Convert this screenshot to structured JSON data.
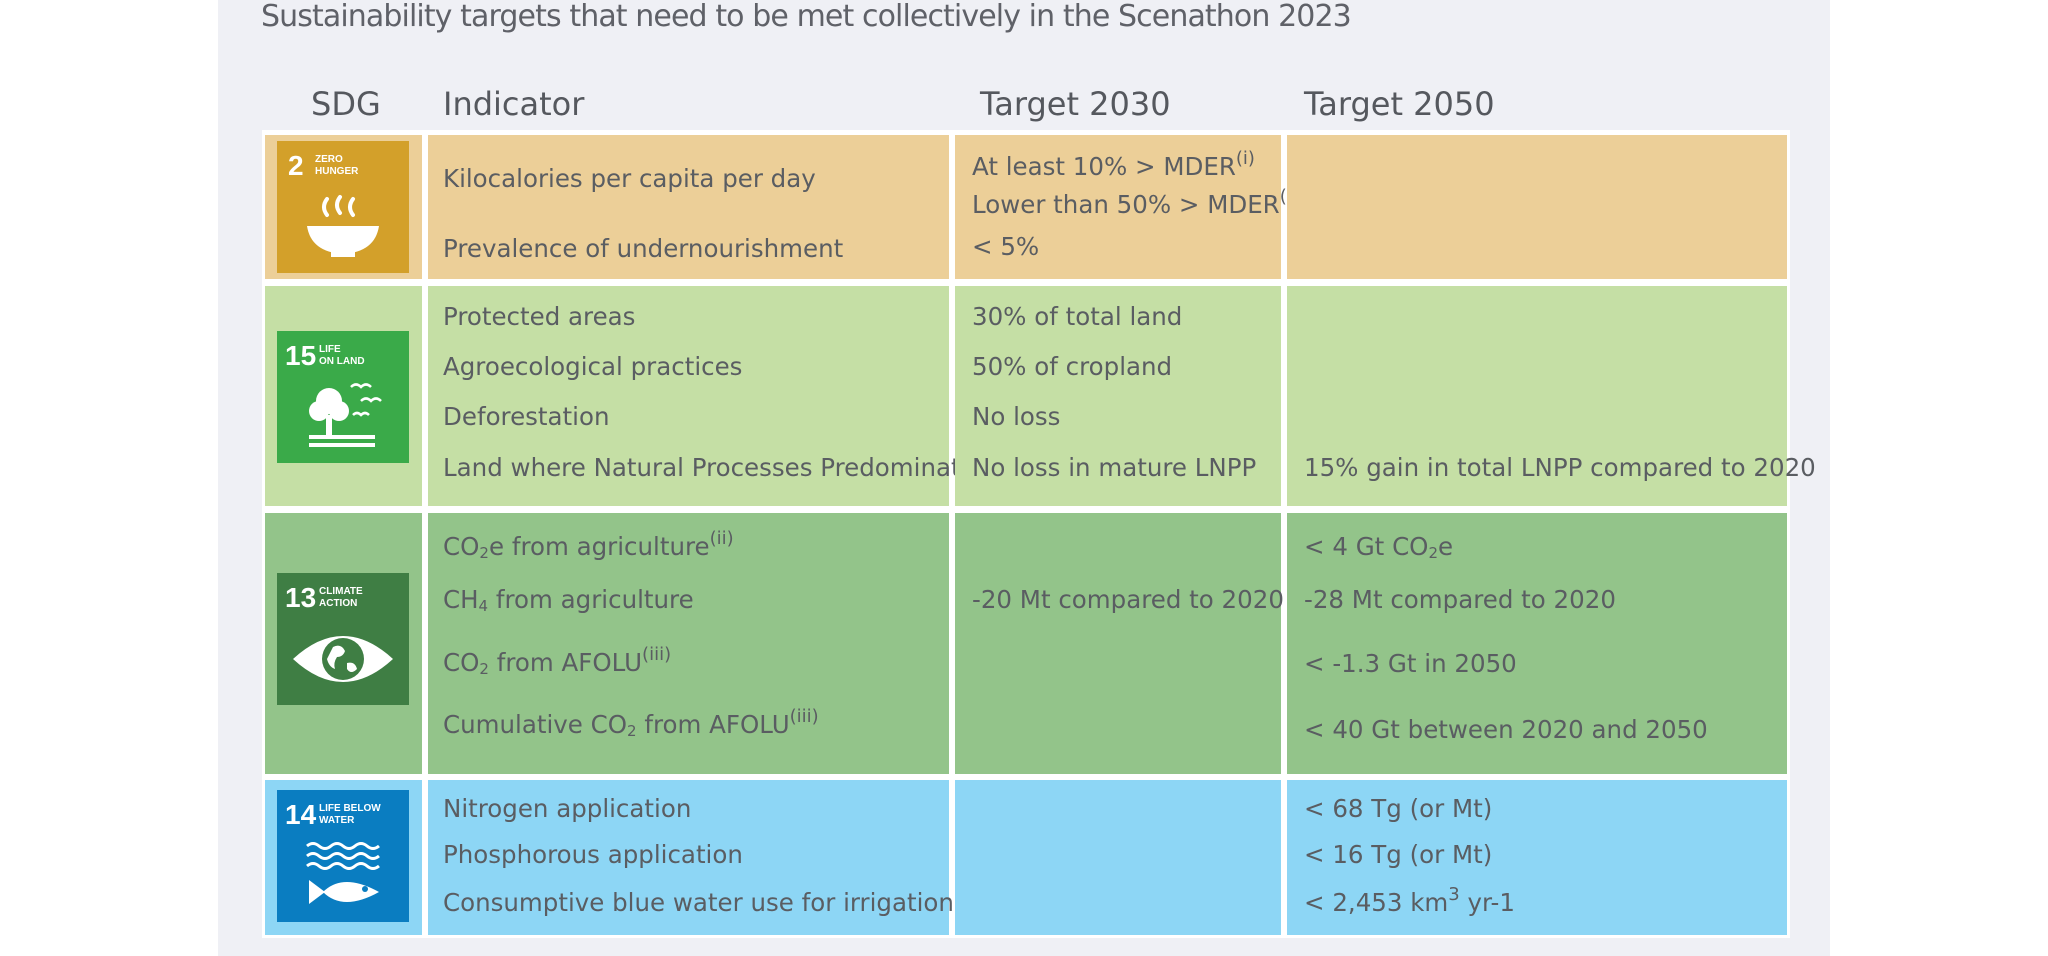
{
  "title": "Sustainability targets that need to be met collectively in the Scenathon 2023",
  "headers": {
    "sdg": "SDG",
    "indicator": "Indicator",
    "target_2030": "Target 2030",
    "target_2050": "Target 2050"
  },
  "colors": {
    "row_zero_hunger": "#eccf98",
    "row_life_on_land": "#c5dfa5",
    "row_climate_action": "#93c48a",
    "row_life_below_water": "#8dd6f5",
    "sdg2": "#d3a02a",
    "sdg15": "#3aaa49",
    "sdg13": "#3f7e44",
    "sdg14": "#0a7dc1"
  },
  "rows": [
    {
      "sdg": {
        "number": "2",
        "line1": "ZERO",
        "line2": "HUNGER",
        "icon": "bowl-icon"
      },
      "indicators": [
        "Kilocalories per capita per day",
        "Prevalence of undernourishment"
      ],
      "t2030": [
        "At least 10% > MDER",
        "Lower than 50% > MDER",
        "< 5%"
      ],
      "t2030_sup": "(i)",
      "t2050": []
    },
    {
      "sdg": {
        "number": "15",
        "line1": "LIFE",
        "line2": "ON LAND",
        "icon": "tree-birds-icon"
      },
      "indicators": [
        "Protected areas",
        "Agroecological practices",
        "Deforestation",
        "Land where Natural Processes Predominate"
      ],
      "t2030": [
        "30% of total land",
        "50% of cropland",
        "No loss",
        "No loss in mature LNPP"
      ],
      "t2050": [
        "15% gain in total LNPP compared to 2020"
      ]
    },
    {
      "sdg": {
        "number": "13",
        "line1": "CLIMATE",
        "line2": "ACTION",
        "icon": "earth-eye-icon"
      },
      "indicators": [
        {
          "pre": "CO",
          "sub": "2",
          "post": "e from agriculture",
          "sup": "(ii)"
        },
        {
          "pre": "CH",
          "sub": "4",
          "post": " from agriculture",
          "sup": ""
        },
        {
          "pre": "CO",
          "sub": "2",
          "post": " from AFOLU",
          "sup": "(iii)"
        },
        {
          "pre": "Cumulative CO",
          "sub": "2",
          "post": " from AFOLU",
          "sup": "(iii)"
        }
      ],
      "t2030": [
        "-20 Mt compared to 2020"
      ],
      "t2050": [
        {
          "pre": "< 4 Gt CO",
          "sub": "2",
          "post": "e"
        },
        "-28 Mt compared to 2020",
        "< -1.3 Gt in 2050",
        "< 40 Gt between 2020 and 2050"
      ]
    },
    {
      "sdg": {
        "number": "14",
        "line1": "LIFE BELOW",
        "line2": "WATER",
        "icon": "waves-fish-icon"
      },
      "indicators": [
        "Nitrogen application",
        "Phosphorous application",
        "Consumptive blue water use for irrigation"
      ],
      "t2030": [],
      "t2050": [
        "< 68 Tg (or Mt)",
        "< 16 Tg (or Mt)",
        {
          "pre": "< 2,453 km",
          "sup": "3",
          "post": " yr-1"
        }
      ]
    }
  ]
}
